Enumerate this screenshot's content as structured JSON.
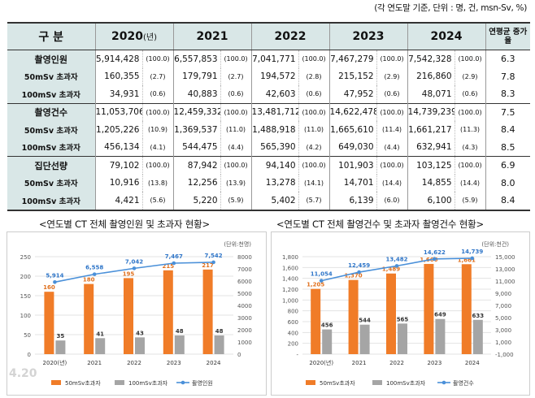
{
  "unit_note": "(각 연도말 기준, 단위 : 명, 건, msn-Sv, %)",
  "table": {
    "header": {
      "category": "구 분",
      "years": [
        {
          "year": "2020",
          "suffix": "(년)"
        },
        {
          "year": "2021",
          "suffix": ""
        },
        {
          "year": "2022",
          "suffix": ""
        },
        {
          "year": "2023",
          "suffix": ""
        },
        {
          "year": "2024",
          "suffix": ""
        }
      ],
      "growth": "연평균 증가율"
    },
    "rows": [
      {
        "label": "촬영인원",
        "main": true,
        "cells": [
          [
            "5,914,428",
            "(100.0)"
          ],
          [
            "6,557,853",
            "(100.0)"
          ],
          [
            "7,041,771",
            "(100.0)"
          ],
          [
            "7,467,279",
            "(100.0)"
          ],
          [
            "7,542,328",
            "(100.0)"
          ]
        ],
        "growth": "6.3"
      },
      {
        "label": "50mSv 초과자",
        "main": false,
        "cells": [
          [
            "160,355",
            "(2.7)"
          ],
          [
            "179,791",
            "(2.7)"
          ],
          [
            "194,572",
            "(2.8)"
          ],
          [
            "215,152",
            "(2.9)"
          ],
          [
            "216,860",
            "(2.9)"
          ]
        ],
        "growth": "7.8"
      },
      {
        "label": "100mSv 초과자",
        "main": false,
        "cells": [
          [
            "34,931",
            "(0.6)"
          ],
          [
            "40,883",
            "(0.6)"
          ],
          [
            "42,603",
            "(0.6)"
          ],
          [
            "47,952",
            "(0.6)"
          ],
          [
            "48,071",
            "(0.6)"
          ]
        ],
        "growth": "8.3"
      },
      {
        "label": "촬영건수",
        "main": true,
        "cells": [
          [
            "11,053,706",
            "(100.0)"
          ],
          [
            "12,459,332",
            "(100.0)"
          ],
          [
            "13,481,712",
            "(100.0)"
          ],
          [
            "14,622,478",
            "(100.0)"
          ],
          [
            "14,739,239",
            "(100.0)"
          ]
        ],
        "growth": "7.5"
      },
      {
        "label": "50mSv 초과자",
        "main": false,
        "cells": [
          [
            "1,205,226",
            "(10.9)"
          ],
          [
            "1,369,537",
            "(11.0)"
          ],
          [
            "1,488,918",
            "(11.0)"
          ],
          [
            "1,665,610",
            "(11.4)"
          ],
          [
            "1,661,217",
            "(11.3)"
          ]
        ],
        "growth": "8.4"
      },
      {
        "label": "100mSv 초과자",
        "main": false,
        "cells": [
          [
            "456,134",
            "(4.1)"
          ],
          [
            "544,475",
            "(4.4)"
          ],
          [
            "565,390",
            "(4.2)"
          ],
          [
            "649,030",
            "(4.4)"
          ],
          [
            "632,941",
            "(4.3)"
          ]
        ],
        "growth": "8.5"
      },
      {
        "label": "집단선량",
        "main": true,
        "cells": [
          [
            "79,102",
            "(100.0)"
          ],
          [
            "87,942",
            "(100.0)"
          ],
          [
            "94,140",
            "(100.0)"
          ],
          [
            "101,903",
            "(100.0)"
          ],
          [
            "103,125",
            "(100.0)"
          ]
        ],
        "growth": "6.9"
      },
      {
        "label": "50mSv 초과자",
        "main": false,
        "cells": [
          [
            "10,916",
            "(13.8)"
          ],
          [
            "12,256",
            "(13.9)"
          ],
          [
            "13,278",
            "(14.1)"
          ],
          [
            "14,701",
            "(14.4)"
          ],
          [
            "14,855",
            "(14.4)"
          ]
        ],
        "growth": "8.0"
      },
      {
        "label": "100mSv 초과자",
        "main": false,
        "cells": [
          [
            "4,421",
            "(5.6)"
          ],
          [
            "5,220",
            "(5.9)"
          ],
          [
            "5,402",
            "(5.7)"
          ],
          [
            "6,139",
            "(6.0)"
          ],
          [
            "6,100",
            "(5.9)"
          ]
        ],
        "growth": "8.4"
      }
    ]
  },
  "chart_data": [
    {
      "type": "bar",
      "title": "<연도별 CT 전체 촬영인원 및 초과자 현황>",
      "unit": "(단위:천명)",
      "categories": [
        "2020(년)",
        "2021",
        "2022",
        "2023",
        "2024"
      ],
      "ylim_left": [
        0,
        250
      ],
      "yticks_left": [
        0,
        50,
        100,
        150,
        200,
        250
      ],
      "ylim_right": [
        0,
        8000
      ],
      "yticks_right": [
        0,
        1000,
        2000,
        3000,
        4000,
        5000,
        6000,
        7000,
        8000
      ],
      "series": [
        {
          "name": "50mSv초과자",
          "kind": "bar",
          "axis": "left",
          "color": "#f07c28",
          "values": [
            160,
            180,
            195,
            215,
            217
          ],
          "labels": [
            "160",
            "180",
            "195",
            "215",
            "217"
          ]
        },
        {
          "name": "100mSv초과자",
          "kind": "bar",
          "axis": "left",
          "color": "#a5a5a5",
          "values": [
            35,
            41,
            43,
            48,
            48
          ],
          "labels": [
            "35",
            "41",
            "43",
            "48",
            "48"
          ]
        },
        {
          "name": "촬영인원",
          "kind": "line",
          "axis": "right",
          "color": "#4a90d9",
          "values": [
            5914,
            6558,
            7042,
            7467,
            7542
          ],
          "labels": [
            "5,914",
            "6,558",
            "7,042",
            "7,467",
            "7,542"
          ]
        }
      ],
      "watermark": "4.20"
    },
    {
      "type": "bar",
      "title": "<연도별 CT 전체 촬영건수 및 초과자 촬영건수 현황>",
      "unit": "(단위:천건)",
      "categories": [
        "2020(년)",
        "2021",
        "2022",
        "2023",
        "2024"
      ],
      "ylim_left": [
        0,
        1800
      ],
      "yticks_left": [
        0,
        200,
        400,
        600,
        800,
        1000,
        1200,
        1400,
        1600,
        1800
      ],
      "yticklabels_left": [
        "-",
        "200",
        "400",
        "600",
        "800",
        "1,000",
        "1,200",
        "1,400",
        "1,600",
        "1,800"
      ],
      "ylim_right": [
        -1000,
        15000
      ],
      "yticks_right": [
        -1000,
        1000,
        3000,
        5000,
        7000,
        9000,
        11000,
        13000,
        15000
      ],
      "yticklabels_right": [
        "-1,000",
        "1,000",
        "3,000",
        "5,000",
        "7,000",
        "9,000",
        "11,000",
        "13,000",
        "15,000"
      ],
      "series": [
        {
          "name": "50mSv초과자",
          "kind": "bar",
          "axis": "left",
          "color": "#f07c28",
          "values": [
            1205,
            1370,
            1489,
            1666,
            1661
          ],
          "labels": [
            "1,205",
            "1,370",
            "1,489",
            "1,666",
            "1,661"
          ]
        },
        {
          "name": "100mSv초과자",
          "kind": "bar",
          "axis": "left",
          "color": "#a5a5a5",
          "values": [
            456,
            544,
            565,
            649,
            633
          ],
          "labels": [
            "456",
            "544",
            "565",
            "649",
            "633"
          ]
        },
        {
          "name": "촬영건수",
          "kind": "line",
          "axis": "right",
          "color": "#4a90d9",
          "values": [
            11054,
            12459,
            13482,
            14622,
            14739
          ],
          "labels": [
            "11,054",
            "12,459",
            "13,482",
            "14,622",
            "14,739"
          ]
        }
      ]
    }
  ]
}
